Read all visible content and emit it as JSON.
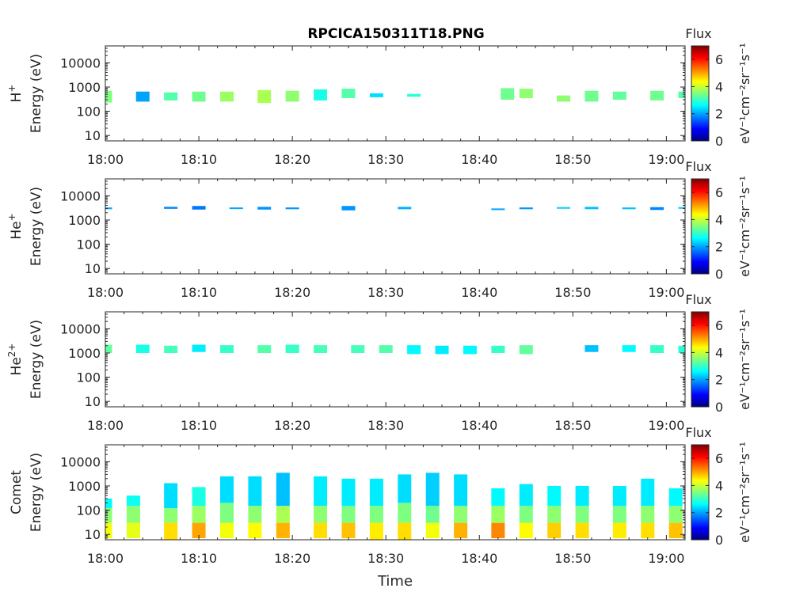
{
  "figure": {
    "title": "RPCICA150311T18.PNG",
    "xlabel": "Time",
    "colorbar_title": "Flux",
    "colorbar_label": "eV⁻¹cm⁻²sr⁻¹s⁻¹",
    "colorbar_ticks": [
      "0",
      "2",
      "4",
      "6"
    ],
    "colormap": [
      "#00007f",
      "#0000ff",
      "#007fff",
      "#00ffff",
      "#7fff7f",
      "#ffff00",
      "#ff7f00",
      "#ff0000",
      "#7f0000"
    ]
  },
  "chart_data": [
    {
      "type": "heatmap",
      "species": "H+",
      "ylabel": "Energy (eV)",
      "ylabel_species": "H",
      "ylabel_sup": "+",
      "xlim": [
        "18:00",
        "19:02"
      ],
      "ylim": [
        6,
        50000
      ],
      "yscale": "log",
      "x_ticks": [
        "18:00",
        "18:10",
        "18:20",
        "18:30",
        "18:40",
        "18:50",
        "19:00"
      ],
      "y_ticks": [
        "10",
        "100",
        "1000",
        "10000"
      ],
      "colorbar_range": [
        0,
        7
      ],
      "segments": [
        {
          "t": "18:00",
          "e_min": 230,
          "e_max": 700,
          "flux": 3.5
        },
        {
          "t": "18:04",
          "e_min": 250,
          "e_max": 650,
          "flux": 2.0
        },
        {
          "t": "18:07",
          "e_min": 280,
          "e_max": 600,
          "flux": 3.2
        },
        {
          "t": "18:10",
          "e_min": 250,
          "e_max": 650,
          "flux": 3.4
        },
        {
          "t": "18:13",
          "e_min": 250,
          "e_max": 650,
          "flux": 3.7
        },
        {
          "t": "18:17",
          "e_min": 220,
          "e_max": 750,
          "flux": 3.8
        },
        {
          "t": "18:20",
          "e_min": 250,
          "e_max": 700,
          "flux": 3.6
        },
        {
          "t": "18:23",
          "e_min": 280,
          "e_max": 800,
          "flux": 2.8
        },
        {
          "t": "18:26",
          "e_min": 350,
          "e_max": 850,
          "flux": 3.2
        },
        {
          "t": "18:29",
          "e_min": 380,
          "e_max": 550,
          "flux": 2.4
        },
        {
          "t": "18:33",
          "e_min": 400,
          "e_max": 520,
          "flux": 2.9
        },
        {
          "t": "18:43",
          "e_min": 300,
          "e_max": 900,
          "flux": 3.4
        },
        {
          "t": "18:45",
          "e_min": 350,
          "e_max": 850,
          "flux": 3.6
        },
        {
          "t": "18:49",
          "e_min": 250,
          "e_max": 450,
          "flux": 3.6
        },
        {
          "t": "18:52",
          "e_min": 250,
          "e_max": 700,
          "flux": 3.4
        },
        {
          "t": "18:55",
          "e_min": 300,
          "e_max": 650,
          "flux": 3.3
        },
        {
          "t": "18:59",
          "e_min": 280,
          "e_max": 700,
          "flux": 3.4
        },
        {
          "t": "19:02",
          "e_min": 350,
          "e_max": 650,
          "flux": 3.2
        }
      ]
    },
    {
      "type": "heatmap",
      "species": "He+",
      "ylabel": "Energy (eV)",
      "ylabel_species": "He",
      "ylabel_sup": "+",
      "xlim": [
        "18:00",
        "19:02"
      ],
      "ylim": [
        6,
        50000
      ],
      "yscale": "log",
      "x_ticks": [
        "18:00",
        "18:10",
        "18:20",
        "18:30",
        "18:40",
        "18:50",
        "19:00"
      ],
      "y_ticks": [
        "10",
        "100",
        "1000",
        "10000"
      ],
      "colorbar_range": [
        0,
        7
      ],
      "segments": [
        {
          "t": "18:00",
          "e_min": 2800,
          "e_max": 3300,
          "flux": 2.0
        },
        {
          "t": "18:07",
          "e_min": 2900,
          "e_max": 3500,
          "flux": 1.8
        },
        {
          "t": "18:10",
          "e_min": 2700,
          "e_max": 3800,
          "flux": 1.7
        },
        {
          "t": "18:14",
          "e_min": 2900,
          "e_max": 3300,
          "flux": 2.0
        },
        {
          "t": "18:17",
          "e_min": 2700,
          "e_max": 3500,
          "flux": 1.9
        },
        {
          "t": "18:20",
          "e_min": 2800,
          "e_max": 3300,
          "flux": 1.9
        },
        {
          "t": "18:26",
          "e_min": 2500,
          "e_max": 3800,
          "flux": 1.9
        },
        {
          "t": "18:32",
          "e_min": 2800,
          "e_max": 3500,
          "flux": 2.1
        },
        {
          "t": "18:42",
          "e_min": 2600,
          "e_max": 3000,
          "flux": 2.0
        },
        {
          "t": "18:45",
          "e_min": 2800,
          "e_max": 3300,
          "flux": 1.9
        },
        {
          "t": "18:49",
          "e_min": 3000,
          "e_max": 3400,
          "flux": 2.3
        },
        {
          "t": "18:52",
          "e_min": 2800,
          "e_max": 3500,
          "flux": 2.2
        },
        {
          "t": "18:56",
          "e_min": 2800,
          "e_max": 3300,
          "flux": 2.2
        },
        {
          "t": "18:59",
          "e_min": 2600,
          "e_max": 3400,
          "flux": 1.8
        },
        {
          "t": "19:02",
          "e_min": 3000,
          "e_max": 3400,
          "flux": 2.2
        }
      ]
    },
    {
      "type": "heatmap",
      "species": "He2+",
      "ylabel": "Energy (eV)",
      "ylabel_species": "He",
      "ylabel_sup": "2+",
      "xlim": [
        "18:00",
        "19:02"
      ],
      "ylim": [
        6,
        50000
      ],
      "yscale": "log",
      "x_ticks": [
        "18:00",
        "18:10",
        "18:20",
        "18:30",
        "18:40",
        "18:50",
        "19:00"
      ],
      "y_ticks": [
        "10",
        "100",
        "1000",
        "10000"
      ],
      "colorbar_range": [
        0,
        7
      ],
      "segments": [
        {
          "t": "18:00",
          "e_min": 1000,
          "e_max": 2200,
          "flux": 3.3
        },
        {
          "t": "18:04",
          "e_min": 1000,
          "e_max": 2200,
          "flux": 2.8
        },
        {
          "t": "18:07",
          "e_min": 1000,
          "e_max": 2000,
          "flux": 3.1
        },
        {
          "t": "18:10",
          "e_min": 1100,
          "e_max": 2200,
          "flux": 2.5
        },
        {
          "t": "18:13",
          "e_min": 1000,
          "e_max": 2100,
          "flux": 3.0
        },
        {
          "t": "18:17",
          "e_min": 1000,
          "e_max": 2100,
          "flux": 3.2
        },
        {
          "t": "18:20",
          "e_min": 1000,
          "e_max": 2200,
          "flux": 3.0
        },
        {
          "t": "18:23",
          "e_min": 1000,
          "e_max": 2100,
          "flux": 3.1
        },
        {
          "t": "18:27",
          "e_min": 1000,
          "e_max": 2100,
          "flux": 3.1
        },
        {
          "t": "18:30",
          "e_min": 1000,
          "e_max": 2100,
          "flux": 3.2
        },
        {
          "t": "18:33",
          "e_min": 900,
          "e_max": 2100,
          "flux": 2.6
        },
        {
          "t": "18:36",
          "e_min": 900,
          "e_max": 2000,
          "flux": 2.5
        },
        {
          "t": "18:39",
          "e_min": 900,
          "e_max": 2000,
          "flux": 2.6
        },
        {
          "t": "18:42",
          "e_min": 1000,
          "e_max": 2000,
          "flux": 3.0
        },
        {
          "t": "18:45",
          "e_min": 900,
          "e_max": 2100,
          "flux": 3.3
        },
        {
          "t": "18:52",
          "e_min": 1100,
          "e_max": 2100,
          "flux": 2.2
        },
        {
          "t": "18:56",
          "e_min": 1100,
          "e_max": 2100,
          "flux": 2.6
        },
        {
          "t": "18:59",
          "e_min": 1000,
          "e_max": 2100,
          "flux": 3.0
        },
        {
          "t": "19:02",
          "e_min": 1000,
          "e_max": 2000,
          "flux": 2.9
        }
      ]
    },
    {
      "type": "heatmap",
      "species": "Comet",
      "ylabel": "Energy (eV)",
      "ylabel_species": "Comet",
      "ylabel_sup": "",
      "xlim": [
        "18:00",
        "19:02"
      ],
      "ylim": [
        6,
        50000
      ],
      "yscale": "log",
      "x_ticks": [
        "18:00",
        "18:10",
        "18:20",
        "18:30",
        "18:40",
        "18:50",
        "19:00"
      ],
      "y_ticks": [
        "10",
        "100",
        "1000",
        "10000"
      ],
      "colorbar_range": [
        0,
        7
      ],
      "segments": [
        {
          "t": "18:00",
          "e_min": 7,
          "e_max": 30,
          "flux": 4.3
        },
        {
          "t": "18:00",
          "e_min": 30,
          "e_max": 120,
          "flux": 3.6
        },
        {
          "t": "18:00",
          "e_min": 120,
          "e_max": 300,
          "flux": 2.6
        },
        {
          "t": "18:03",
          "e_min": 7,
          "e_max": 30,
          "flux": 4.2
        },
        {
          "t": "18:03",
          "e_min": 30,
          "e_max": 150,
          "flux": 3.6
        },
        {
          "t": "18:03",
          "e_min": 150,
          "e_max": 400,
          "flux": 2.7
        },
        {
          "t": "18:07",
          "e_min": 6,
          "e_max": 30,
          "flux": 4.6
        },
        {
          "t": "18:07",
          "e_min": 30,
          "e_max": 120,
          "flux": 3.6
        },
        {
          "t": "18:07",
          "e_min": 120,
          "e_max": 1300,
          "flux": 2.4
        },
        {
          "t": "18:10",
          "e_min": 7,
          "e_max": 30,
          "flux": 5.0
        },
        {
          "t": "18:10",
          "e_min": 30,
          "e_max": 150,
          "flux": 3.7
        },
        {
          "t": "18:10",
          "e_min": 150,
          "e_max": 900,
          "flux": 2.8
        },
        {
          "t": "18:13",
          "e_min": 7,
          "e_max": 30,
          "flux": 4.3
        },
        {
          "t": "18:13",
          "e_min": 30,
          "e_max": 200,
          "flux": 3.5
        },
        {
          "t": "18:13",
          "e_min": 200,
          "e_max": 2500,
          "flux": 2.4
        },
        {
          "t": "18:16",
          "e_min": 7,
          "e_max": 30,
          "flux": 4.4
        },
        {
          "t": "18:16",
          "e_min": 30,
          "e_max": 150,
          "flux": 3.6
        },
        {
          "t": "18:16",
          "e_min": 150,
          "e_max": 2500,
          "flux": 2.4
        },
        {
          "t": "18:19",
          "e_min": 7,
          "e_max": 30,
          "flux": 4.9
        },
        {
          "t": "18:19",
          "e_min": 30,
          "e_max": 150,
          "flux": 3.8
        },
        {
          "t": "18:19",
          "e_min": 150,
          "e_max": 3500,
          "flux": 2.2
        },
        {
          "t": "18:23",
          "e_min": 7,
          "e_max": 30,
          "flux": 4.6
        },
        {
          "t": "18:23",
          "e_min": 30,
          "e_max": 150,
          "flux": 3.6
        },
        {
          "t": "18:23",
          "e_min": 150,
          "e_max": 2500,
          "flux": 2.5
        },
        {
          "t": "18:26",
          "e_min": 7,
          "e_max": 30,
          "flux": 4.8
        },
        {
          "t": "18:26",
          "e_min": 30,
          "e_max": 150,
          "flux": 3.5
        },
        {
          "t": "18:26",
          "e_min": 150,
          "e_max": 2000,
          "flux": 2.5
        },
        {
          "t": "18:29",
          "e_min": 6,
          "e_max": 30,
          "flux": 4.5
        },
        {
          "t": "18:29",
          "e_min": 30,
          "e_max": 150,
          "flux": 3.5
        },
        {
          "t": "18:29",
          "e_min": 150,
          "e_max": 2000,
          "flux": 2.5
        },
        {
          "t": "18:32",
          "e_min": 6,
          "e_max": 30,
          "flux": 4.6
        },
        {
          "t": "18:32",
          "e_min": 30,
          "e_max": 200,
          "flux": 3.5
        },
        {
          "t": "18:32",
          "e_min": 200,
          "e_max": 3000,
          "flux": 2.4
        },
        {
          "t": "18:35",
          "e_min": 7,
          "e_max": 30,
          "flux": 4.3
        },
        {
          "t": "18:35",
          "e_min": 30,
          "e_max": 150,
          "flux": 3.4
        },
        {
          "t": "18:35",
          "e_min": 150,
          "e_max": 3500,
          "flux": 2.3
        },
        {
          "t": "18:38",
          "e_min": 7,
          "e_max": 30,
          "flux": 4.9
        },
        {
          "t": "18:38",
          "e_min": 30,
          "e_max": 150,
          "flux": 3.6
        },
        {
          "t": "18:38",
          "e_min": 150,
          "e_max": 3000,
          "flux": 2.4
        },
        {
          "t": "18:42",
          "e_min": 7,
          "e_max": 30,
          "flux": 5.2
        },
        {
          "t": "18:42",
          "e_min": 30,
          "e_max": 150,
          "flux": 3.7
        },
        {
          "t": "18:42",
          "e_min": 150,
          "e_max": 800,
          "flux": 2.6
        },
        {
          "t": "18:45",
          "e_min": 7,
          "e_max": 30,
          "flux": 4.4
        },
        {
          "t": "18:45",
          "e_min": 30,
          "e_max": 150,
          "flux": 3.5
        },
        {
          "t": "18:45",
          "e_min": 150,
          "e_max": 1200,
          "flux": 2.5
        },
        {
          "t": "18:48",
          "e_min": 7,
          "e_max": 30,
          "flux": 4.7
        },
        {
          "t": "18:48",
          "e_min": 30,
          "e_max": 150,
          "flux": 3.6
        },
        {
          "t": "18:48",
          "e_min": 150,
          "e_max": 1000,
          "flux": 2.6
        },
        {
          "t": "18:51",
          "e_min": 7,
          "e_max": 30,
          "flux": 4.6
        },
        {
          "t": "18:51",
          "e_min": 30,
          "e_max": 150,
          "flux": 3.5
        },
        {
          "t": "18:51",
          "e_min": 150,
          "e_max": 1000,
          "flux": 2.5
        },
        {
          "t": "18:55",
          "e_min": 7,
          "e_max": 30,
          "flux": 4.5
        },
        {
          "t": "18:55",
          "e_min": 30,
          "e_max": 150,
          "flux": 3.5
        },
        {
          "t": "18:55",
          "e_min": 150,
          "e_max": 1000,
          "flux": 2.5
        },
        {
          "t": "18:58",
          "e_min": 7,
          "e_max": 30,
          "flux": 4.6
        },
        {
          "t": "18:58",
          "e_min": 30,
          "e_max": 150,
          "flux": 3.6
        },
        {
          "t": "18:58",
          "e_min": 150,
          "e_max": 2000,
          "flux": 2.5
        },
        {
          "t": "19:01",
          "e_min": 7,
          "e_max": 30,
          "flux": 4.8
        },
        {
          "t": "19:01",
          "e_min": 30,
          "e_max": 150,
          "flux": 3.6
        },
        {
          "t": "19:01",
          "e_min": 150,
          "e_max": 800,
          "flux": 2.6
        }
      ]
    }
  ]
}
